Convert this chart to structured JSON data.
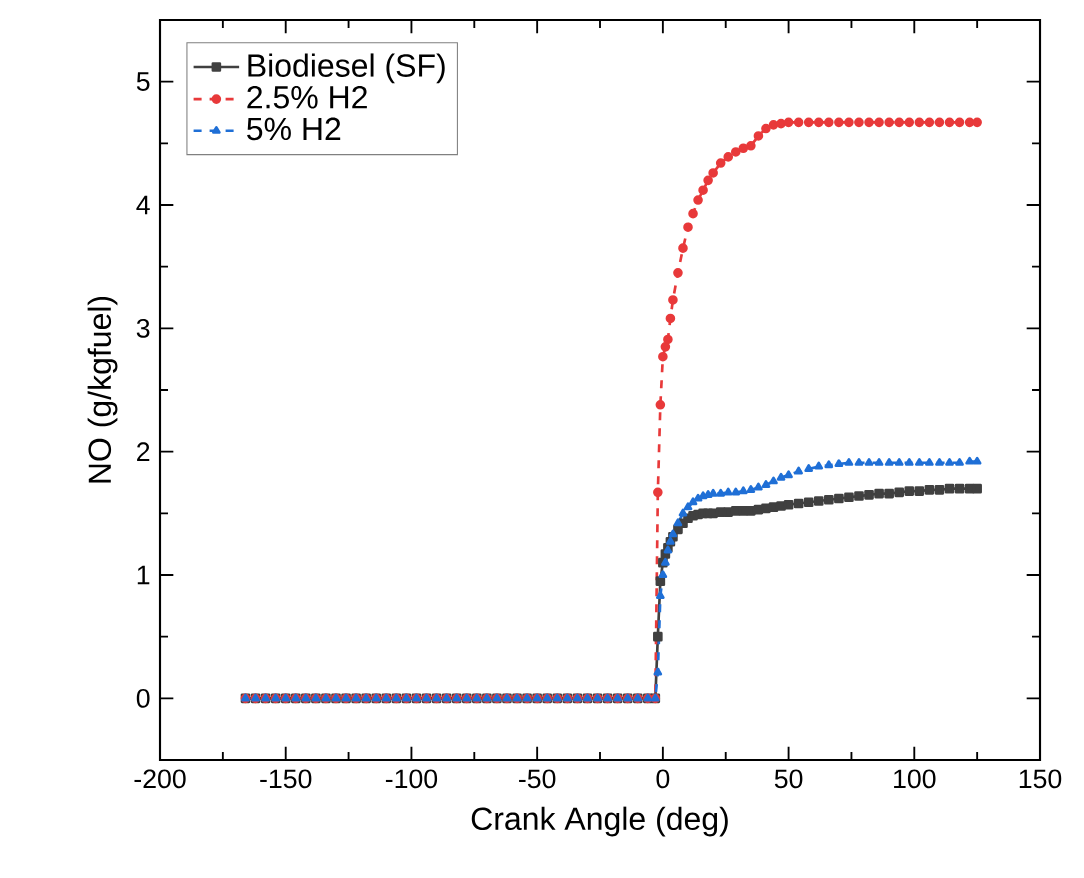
{
  "chart_data": {
    "type": "line",
    "xlabel": "Crank Angle (deg)",
    "ylabel": "NO (g/kgfuel)",
    "x": [
      -166,
      -162,
      -158,
      -154,
      -150,
      -146,
      -142,
      -138,
      -134,
      -130,
      -126,
      -122,
      -118,
      -114,
      -110,
      -106,
      -102,
      -98,
      -94,
      -90,
      -86,
      -82,
      -78,
      -74,
      -70,
      -66,
      -62,
      -58,
      -54,
      -50,
      -46,
      -42,
      -38,
      -34,
      -30,
      -26,
      -22,
      -18,
      -14,
      -10,
      -6,
      -3,
      -2,
      -1,
      0,
      1,
      2,
      3,
      4,
      6,
      8,
      10,
      12,
      14,
      16,
      18,
      20,
      23,
      26,
      29,
      32,
      35,
      38,
      41,
      44,
      47,
      50,
      54,
      58,
      62,
      66,
      70,
      74,
      78,
      82,
      86,
      90,
      94,
      98,
      102,
      106,
      110,
      114,
      118,
      122,
      125
    ],
    "xlim": [
      -200,
      150
    ],
    "xticks": [
      -200,
      -150,
      -100,
      -50,
      0,
      50,
      100,
      150
    ],
    "ylim": [
      -0.5,
      5.5
    ],
    "yticks": [
      0,
      1,
      2,
      3,
      4,
      5
    ],
    "legend": "top left",
    "series": [
      {
        "name": "Biodiesel (SF)",
        "color": "#404040",
        "marker": "square",
        "line_style": "solid",
        "values": [
          0,
          0,
          0,
          0,
          0,
          0,
          0,
          0,
          0,
          0,
          0,
          0,
          0,
          0,
          0,
          0,
          0,
          0,
          0,
          0,
          0,
          0,
          0,
          0,
          0,
          0,
          0,
          0,
          0,
          0,
          0,
          0,
          0,
          0,
          0,
          0,
          0,
          0,
          0,
          0,
          0,
          0,
          0.5,
          0.95,
          1.1,
          1.17,
          1.22,
          1.27,
          1.31,
          1.37,
          1.42,
          1.46,
          1.48,
          1.49,
          1.5,
          1.5,
          1.5,
          1.51,
          1.51,
          1.52,
          1.52,
          1.52,
          1.53,
          1.54,
          1.55,
          1.56,
          1.57,
          1.58,
          1.59,
          1.6,
          1.61,
          1.62,
          1.63,
          1.64,
          1.65,
          1.66,
          1.66,
          1.67,
          1.68,
          1.68,
          1.69,
          1.69,
          1.7,
          1.7,
          1.7,
          1.7
        ]
      },
      {
        "name": "2.5% H2",
        "color": "#e8393a",
        "marker": "circle",
        "line_style": "dashed",
        "values": [
          0,
          0,
          0,
          0,
          0,
          0,
          0,
          0,
          0,
          0,
          0,
          0,
          0,
          0,
          0,
          0,
          0,
          0,
          0,
          0,
          0,
          0,
          0,
          0,
          0,
          0,
          0,
          0,
          0,
          0,
          0,
          0,
          0,
          0,
          0,
          0,
          0,
          0,
          0,
          0,
          0,
          0,
          1.67,
          2.38,
          2.77,
          2.85,
          2.91,
          3.08,
          3.23,
          3.45,
          3.65,
          3.82,
          3.93,
          4.04,
          4.12,
          4.2,
          4.26,
          4.34,
          4.39,
          4.43,
          4.46,
          4.48,
          4.56,
          4.62,
          4.65,
          4.66,
          4.67,
          4.67,
          4.67,
          4.67,
          4.67,
          4.67,
          4.67,
          4.67,
          4.67,
          4.67,
          4.67,
          4.67,
          4.67,
          4.67,
          4.67,
          4.67,
          4.67,
          4.67,
          4.67,
          4.67
        ]
      },
      {
        "name": "5% H2",
        "color": "#1f6fd6",
        "marker": "triangle",
        "line_style": "dashed",
        "values": [
          0,
          0,
          0,
          0,
          0,
          0,
          0,
          0,
          0,
          0,
          0,
          0,
          0,
          0,
          0,
          0,
          0,
          0,
          0,
          0,
          0,
          0,
          0,
          0,
          0,
          0,
          0,
          0,
          0,
          0,
          0,
          0,
          0,
          0,
          0,
          0,
          0,
          0,
          0,
          0,
          0,
          0,
          0.21,
          0.83,
          1.0,
          1.1,
          1.2,
          1.27,
          1.33,
          1.42,
          1.5,
          1.55,
          1.59,
          1.62,
          1.64,
          1.65,
          1.66,
          1.66,
          1.67,
          1.67,
          1.68,
          1.69,
          1.71,
          1.73,
          1.76,
          1.79,
          1.81,
          1.84,
          1.86,
          1.88,
          1.89,
          1.9,
          1.91,
          1.91,
          1.91,
          1.91,
          1.91,
          1.91,
          1.91,
          1.91,
          1.91,
          1.91,
          1.91,
          1.91,
          1.92,
          1.92
        ]
      }
    ]
  }
}
